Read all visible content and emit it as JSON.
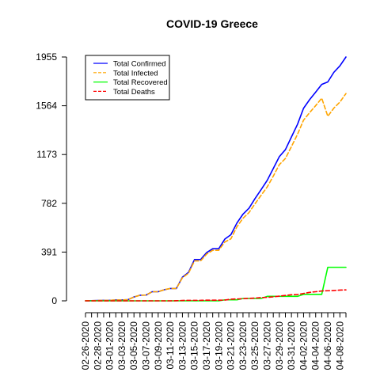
{
  "chart_data": {
    "type": "line",
    "title": "COVID-19 Greece",
    "xlabel": "",
    "ylabel": "",
    "ylim": [
      0,
      1955
    ],
    "yticks": [
      0,
      391,
      782,
      1173,
      1564,
      1955
    ],
    "x": [
      "02-26-2020",
      "02-27-2020",
      "02-28-2020",
      "02-29-2020",
      "03-01-2020",
      "03-02-2020",
      "03-03-2020",
      "03-04-2020",
      "03-05-2020",
      "03-06-2020",
      "03-07-2020",
      "03-08-2020",
      "03-09-2020",
      "03-10-2020",
      "03-11-2020",
      "03-12-2020",
      "03-13-2020",
      "03-14-2020",
      "03-15-2020",
      "03-16-2020",
      "03-17-2020",
      "03-18-2020",
      "03-19-2020",
      "03-20-2020",
      "03-21-2020",
      "03-22-2020",
      "03-23-2020",
      "03-24-2020",
      "03-25-2020",
      "03-26-2020",
      "03-27-2020",
      "03-28-2020",
      "03-29-2020",
      "03-30-2020",
      "03-31-2020",
      "04-01-2020",
      "04-02-2020",
      "04-03-2020",
      "04-04-2020",
      "04-05-2020",
      "04-06-2020",
      "04-07-2020",
      "04-08-2020",
      "04-09-2020"
    ],
    "xtick_labels": [
      "02-26-2020",
      "02-28-2020",
      "03-01-2020",
      "03-03-2020",
      "03-05-2020",
      "03-07-2020",
      "03-09-2020",
      "03-11-2020",
      "03-13-2020",
      "03-15-2020",
      "03-17-2020",
      "03-19-2020",
      "03-21-2020",
      "03-23-2020",
      "03-25-2020",
      "03-27-2020",
      "03-29-2020",
      "03-31-2020",
      "04-02-2020",
      "04-04-2020",
      "04-06-2020",
      "04-08-2020"
    ],
    "legend": {
      "position": "top-left"
    },
    "series": [
      {
        "name": "Total Confirmed",
        "color": "#0000ff",
        "dash": "solid",
        "values": [
          1,
          1,
          3,
          4,
          4,
          7,
          7,
          9,
          31,
          45,
          46,
          73,
          73,
          89,
          99,
          99,
          190,
          228,
          331,
          331,
          387,
          418,
          418,
          495,
          530,
          624,
          695,
          743,
          821,
          892,
          966,
          1061,
          1156,
          1212,
          1314,
          1415,
          1544,
          1613,
          1673,
          1735,
          1755,
          1832,
          1884,
          1955
        ]
      },
      {
        "name": "Total Infected",
        "color": "#ffa500",
        "dash": "dashed",
        "values": [
          1,
          1,
          3,
          4,
          4,
          7,
          7,
          9,
          31,
          45,
          46,
          73,
          73,
          89,
          99,
          99,
          185,
          221,
          320,
          320,
          375,
          405,
          405,
          472,
          497,
          594,
          662,
          708,
          779,
          847,
          913,
          1000,
          1092,
          1141,
          1237,
          1335,
          1449,
          1509,
          1565,
          1625,
          1480,
          1545,
          1594,
          1662
        ]
      },
      {
        "name": "Total Recovered",
        "color": "#00ff00",
        "dash": "solid",
        "values": [
          0,
          0,
          0,
          0,
          0,
          0,
          0,
          0,
          0,
          0,
          0,
          0,
          0,
          0,
          0,
          0,
          0,
          0,
          0,
          0,
          0,
          0,
          0,
          8,
          8,
          8,
          19,
          19,
          19,
          19,
          36,
          36,
          36,
          36,
          36,
          36,
          52,
          52,
          52,
          52,
          269,
          269,
          269,
          269
        ]
      },
      {
        "name": "Total Deaths",
        "color": "#ff0000",
        "dash": "dashed",
        "values": [
          0,
          0,
          0,
          0,
          0,
          0,
          0,
          0,
          0,
          0,
          0,
          0,
          0,
          0,
          0,
          1,
          3,
          4,
          4,
          4,
          5,
          5,
          5,
          6,
          13,
          15,
          17,
          20,
          22,
          26,
          28,
          32,
          38,
          43,
          49,
          50,
          59,
          68,
          73,
          79,
          81,
          83,
          86,
          88
        ]
      }
    ]
  }
}
